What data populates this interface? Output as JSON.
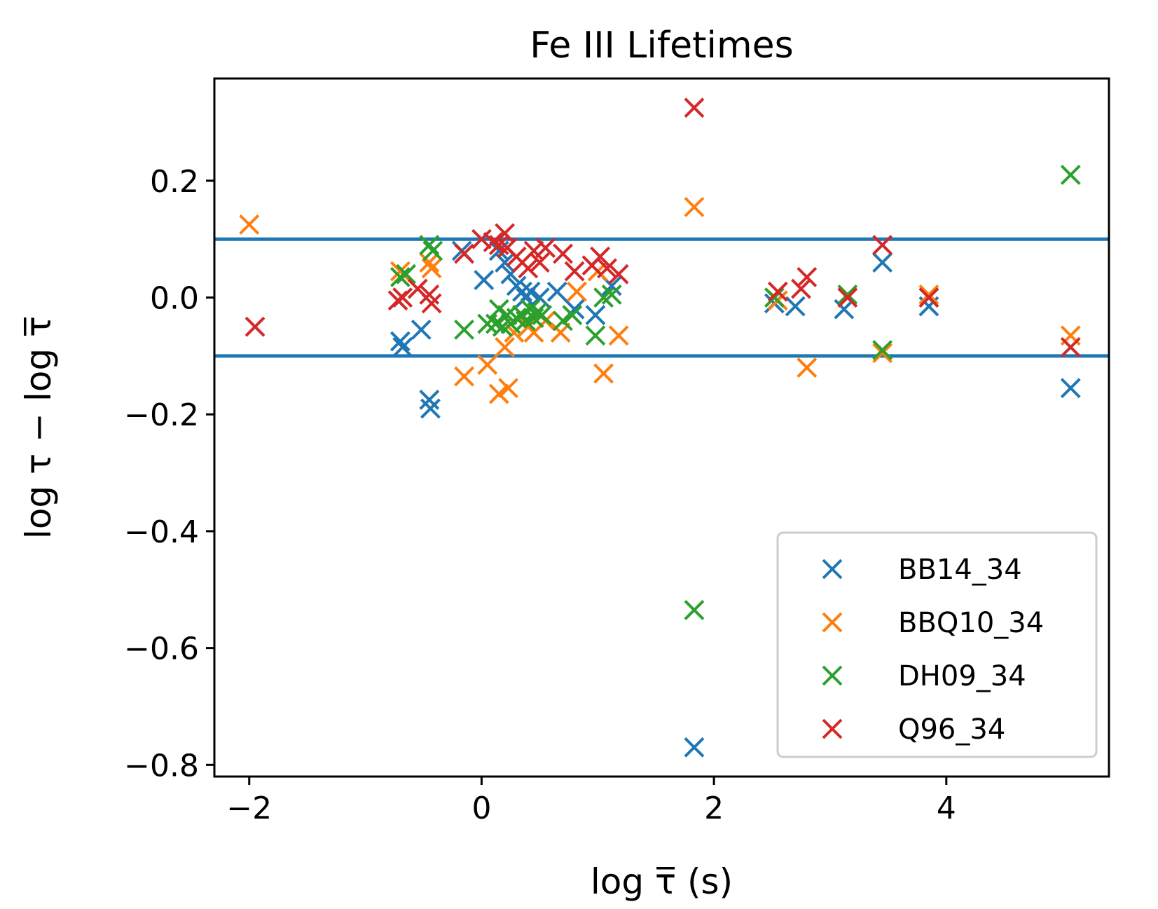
{
  "chart_data": {
    "type": "scatter",
    "title": "Fe III Lifetimes",
    "xlabel": "log τ̅ (s)",
    "ylabel": "log τ − log τ̅",
    "xlim": [
      -2.3,
      5.4
    ],
    "ylim": [
      -0.82,
      0.375
    ],
    "xticks": [
      -2,
      0,
      2,
      4
    ],
    "xtick_labels": [
      "−2",
      "0",
      "2",
      "4"
    ],
    "yticks": [
      0.2,
      0.0,
      -0.2,
      -0.4,
      -0.6,
      -0.8
    ],
    "ytick_labels": [
      "0.2",
      "0.0",
      "−0.2",
      "−0.4",
      "−0.6",
      "−0.8"
    ],
    "hlines": [
      0.1,
      -0.1
    ],
    "hline_color": "#1f77b4",
    "marker": "x",
    "legend_position": "lower-right",
    "series": [
      {
        "name": "BB14_34",
        "color": "#1f77b4",
        "points": [
          [
            -0.7,
            -0.075
          ],
          [
            -0.68,
            -0.085
          ],
          [
            -0.52,
            -0.055
          ],
          [
            -0.45,
            -0.175
          ],
          [
            -0.44,
            -0.19
          ],
          [
            -0.17,
            0.08
          ],
          [
            0.02,
            0.03
          ],
          [
            0.15,
            0.08
          ],
          [
            0.2,
            0.06
          ],
          [
            0.25,
            0.04
          ],
          [
            0.3,
            0.02
          ],
          [
            0.35,
            0.01
          ],
          [
            0.38,
            0.0
          ],
          [
            0.42,
            0.01
          ],
          [
            0.5,
            0.0
          ],
          [
            0.65,
            0.01
          ],
          [
            0.8,
            -0.02
          ],
          [
            0.98,
            -0.03
          ],
          [
            1.12,
            0.02
          ],
          [
            1.83,
            -0.77
          ],
          [
            2.52,
            -0.01
          ],
          [
            2.7,
            -0.015
          ],
          [
            3.12,
            -0.02
          ],
          [
            3.45,
            0.06
          ],
          [
            3.85,
            -0.015
          ],
          [
            5.07,
            -0.155
          ]
        ]
      },
      {
        "name": "BBQ10_34",
        "color": "#ff7f0e",
        "points": [
          [
            -2.0,
            0.125
          ],
          [
            -0.7,
            0.045
          ],
          [
            -0.45,
            0.06
          ],
          [
            -0.43,
            0.05
          ],
          [
            -0.15,
            -0.135
          ],
          [
            0.05,
            -0.115
          ],
          [
            0.15,
            -0.165
          ],
          [
            0.2,
            -0.085
          ],
          [
            0.23,
            -0.155
          ],
          [
            0.28,
            -0.06
          ],
          [
            0.35,
            -0.03
          ],
          [
            0.4,
            -0.05
          ],
          [
            0.45,
            -0.06
          ],
          [
            0.55,
            -0.04
          ],
          [
            0.68,
            -0.06
          ],
          [
            0.82,
            0.01
          ],
          [
            1.0,
            0.045
          ],
          [
            1.05,
            -0.13
          ],
          [
            1.18,
            -0.065
          ],
          [
            1.83,
            0.155
          ],
          [
            2.55,
            -0.005
          ],
          [
            2.8,
            -0.12
          ],
          [
            3.15,
            0.0
          ],
          [
            3.45,
            -0.095
          ],
          [
            3.85,
            0.005
          ],
          [
            5.07,
            -0.065
          ]
        ]
      },
      {
        "name": "DH09_34",
        "color": "#2ca02c",
        "points": [
          [
            -0.7,
            0.035
          ],
          [
            -0.65,
            0.04
          ],
          [
            -0.45,
            0.09
          ],
          [
            -0.42,
            0.08
          ],
          [
            -0.15,
            -0.055
          ],
          [
            0.05,
            -0.045
          ],
          [
            0.12,
            -0.045
          ],
          [
            0.15,
            -0.02
          ],
          [
            0.18,
            -0.05
          ],
          [
            0.22,
            -0.03
          ],
          [
            0.25,
            -0.045
          ],
          [
            0.3,
            -0.035
          ],
          [
            0.35,
            -0.03
          ],
          [
            0.38,
            -0.04
          ],
          [
            0.42,
            -0.02
          ],
          [
            0.45,
            -0.035
          ],
          [
            0.48,
            -0.025
          ],
          [
            0.52,
            -0.03
          ],
          [
            0.7,
            -0.04
          ],
          [
            0.78,
            -0.03
          ],
          [
            0.98,
            -0.065
          ],
          [
            1.05,
            0.0
          ],
          [
            1.12,
            0.005
          ],
          [
            1.83,
            -0.535
          ],
          [
            2.52,
            0.0
          ],
          [
            3.15,
            0.005
          ],
          [
            3.45,
            -0.09
          ],
          [
            3.85,
            0.0
          ],
          [
            5.07,
            0.21
          ]
        ]
      },
      {
        "name": "Q96_34",
        "color": "#d62728",
        "points": [
          [
            -1.95,
            -0.05
          ],
          [
            -0.72,
            -0.005
          ],
          [
            -0.68,
            0.0
          ],
          [
            -0.55,
            0.015
          ],
          [
            -0.45,
            0.005
          ],
          [
            -0.43,
            -0.01
          ],
          [
            -0.15,
            0.075
          ],
          [
            0.0,
            0.1
          ],
          [
            0.1,
            0.095
          ],
          [
            0.15,
            0.09
          ],
          [
            0.2,
            0.11
          ],
          [
            0.22,
            0.085
          ],
          [
            0.3,
            0.07
          ],
          [
            0.35,
            0.06
          ],
          [
            0.4,
            0.05
          ],
          [
            0.45,
            0.08
          ],
          [
            0.5,
            0.06
          ],
          [
            0.55,
            0.085
          ],
          [
            0.7,
            0.075
          ],
          [
            0.8,
            0.045
          ],
          [
            0.95,
            0.055
          ],
          [
            1.02,
            0.07
          ],
          [
            1.08,
            0.05
          ],
          [
            1.18,
            0.04
          ],
          [
            1.83,
            0.325
          ],
          [
            2.55,
            0.01
          ],
          [
            2.75,
            0.015
          ],
          [
            2.8,
            0.035
          ],
          [
            3.15,
            0.0
          ],
          [
            3.45,
            0.09
          ],
          [
            3.85,
            0.0
          ],
          [
            5.07,
            -0.085
          ]
        ]
      }
    ]
  }
}
